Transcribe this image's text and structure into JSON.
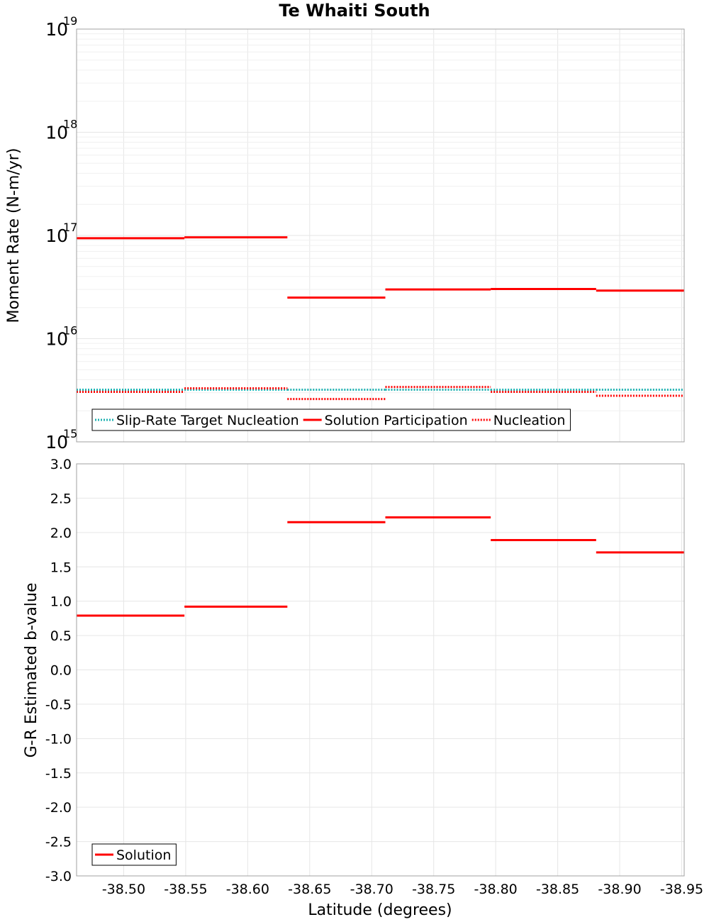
{
  "chart_data": {
    "title": "Te Whaiti South",
    "x_axis": {
      "label": "Latitude (degrees)",
      "range": [
        -38.462,
        -38.952
      ],
      "ticks": [
        -38.5,
        -38.55,
        -38.6,
        -38.65,
        -38.7,
        -38.75,
        -38.8,
        -38.85,
        -38.9,
        -38.95
      ],
      "tick_labels": [
        "-38.50",
        "-38.55",
        "-38.60",
        "-38.65",
        "-38.70",
        "-38.75",
        "-38.80",
        "-38.85",
        "-38.90",
        "-38.95"
      ]
    },
    "subplots": [
      {
        "id": "moment",
        "type": "line",
        "scale": "log",
        "ylabel": "Moment Rate (N-m/yr)",
        "ylim": [
          1000000000000000.0,
          1e+19
        ],
        "y_ticks": [
          {
            "value": 1000000000000000.0,
            "base": "10",
            "exp": "15"
          },
          {
            "value": 1e+16,
            "base": "10",
            "exp": "16"
          },
          {
            "value": 1e+17,
            "base": "10",
            "exp": "17"
          },
          {
            "value": 1e+18,
            "base": "10",
            "exp": "18"
          },
          {
            "value": 1e+19,
            "base": "10",
            "exp": "19"
          }
        ],
        "series": [
          {
            "name": "Slip-Rate Target Nucleation",
            "color": "#20b2b2",
            "style": "dotted",
            "segments": [
              {
                "x": [
                  -38.462,
                  -38.549
                ],
                "y": 3200000000000000.0
              },
              {
                "x": [
                  -38.549,
                  -38.632
                ],
                "y": 3200000000000000.0
              },
              {
                "x": [
                  -38.632,
                  -38.711
                ],
                "y": 3200000000000000.0
              },
              {
                "x": [
                  -38.711,
                  -38.796
                ],
                "y": 3200000000000000.0
              },
              {
                "x": [
                  -38.796,
                  -38.881
                ],
                "y": 3200000000000000.0
              },
              {
                "x": [
                  -38.881,
                  -38.952
                ],
                "y": 3200000000000000.0
              }
            ]
          },
          {
            "name": "Solution Participation",
            "color": "#ff0000",
            "style": "solid",
            "segments": [
              {
                "x": [
                  -38.462,
                  -38.549
                ],
                "y": 9.4e+16
              },
              {
                "x": [
                  -38.549,
                  -38.632
                ],
                "y": 9.6e+16
              },
              {
                "x": [
                  -38.632,
                  -38.711
                ],
                "y": 2.5e+16
              },
              {
                "x": [
                  -38.711,
                  -38.796
                ],
                "y": 3e+16
              },
              {
                "x": [
                  -38.796,
                  -38.881
                ],
                "y": 3.03e+16
              },
              {
                "x": [
                  -38.881,
                  -38.952
                ],
                "y": 2.92e+16
              }
            ]
          },
          {
            "name": "Nucleation",
            "color": "#ff0000",
            "style": "dotted",
            "segments": [
              {
                "x": [
                  -38.462,
                  -38.549
                ],
                "y": 3050000000000000.0
              },
              {
                "x": [
                  -38.549,
                  -38.632
                ],
                "y": 3300000000000000.0
              },
              {
                "x": [
                  -38.632,
                  -38.711
                ],
                "y": 2600000000000000.0
              },
              {
                "x": [
                  -38.711,
                  -38.796
                ],
                "y": 3400000000000000.0
              },
              {
                "x": [
                  -38.796,
                  -38.881
                ],
                "y": 3050000000000000.0
              },
              {
                "x": [
                  -38.881,
                  -38.952
                ],
                "y": 2800000000000000.0
              }
            ]
          }
        ],
        "legend": {
          "position": "bottom-left",
          "entries": [
            "Slip-Rate Target Nucleation",
            "Solution Participation",
            "Nucleation"
          ]
        }
      },
      {
        "id": "bvalue",
        "type": "line",
        "scale": "linear",
        "ylabel": "G-R Estimated b-value",
        "ylim": [
          -3.0,
          3.0
        ],
        "y_ticks": [
          3.0,
          2.5,
          2.0,
          1.5,
          1.0,
          0.5,
          0.0,
          -0.5,
          -1.0,
          -1.5,
          -2.0,
          -2.5,
          -3.0
        ],
        "y_tick_labels": [
          "3.0",
          "2.5",
          "2.0",
          "1.5",
          "1.0",
          "0.5",
          "0.0",
          "-0.5",
          "-1.0",
          "-1.5",
          "-2.0",
          "-2.5",
          "-3.0"
        ],
        "series": [
          {
            "name": "Solution",
            "color": "#ff0000",
            "style": "solid",
            "segments": [
              {
                "x": [
                  -38.462,
                  -38.549
                ],
                "y": 0.79
              },
              {
                "x": [
                  -38.549,
                  -38.632
                ],
                "y": 0.92
              },
              {
                "x": [
                  -38.632,
                  -38.711
                ],
                "y": 2.15
              },
              {
                "x": [
                  -38.711,
                  -38.796
                ],
                "y": 2.22
              },
              {
                "x": [
                  -38.796,
                  -38.881
                ],
                "y": 1.89
              },
              {
                "x": [
                  -38.881,
                  -38.952
                ],
                "y": 1.71
              }
            ]
          }
        ],
        "legend": {
          "position": "bottom-left",
          "entries": [
            "Solution"
          ]
        }
      }
    ]
  }
}
